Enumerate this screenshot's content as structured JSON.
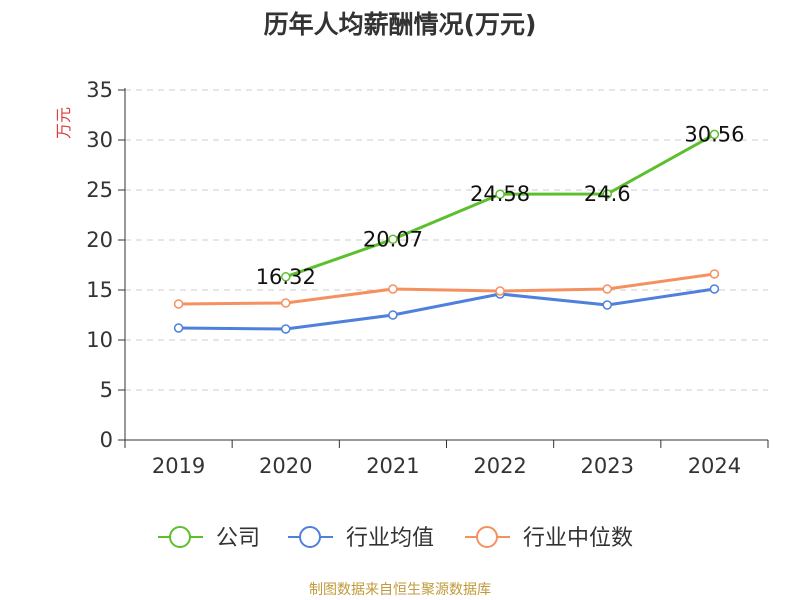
{
  "title": "历年人均薪酬情况(万元)",
  "footer": "制图数据来自恒生聚源数据库",
  "chart_data": {
    "type": "line",
    "title": "历年人均薪酬情况(万元)",
    "ylabel": "万元",
    "xlabel": "",
    "categories": [
      "2019",
      "2020",
      "2021",
      "2022",
      "2023",
      "2024"
    ],
    "ylim": [
      0,
      35
    ],
    "yticks": [
      0,
      5,
      10,
      15,
      20,
      25,
      30,
      35
    ],
    "grid": true,
    "legend_position": "bottom",
    "series": [
      {
        "name": "公司",
        "color": "#5cbf2c",
        "values": [
          null,
          16.32,
          20.07,
          24.58,
          24.6,
          30.56
        ],
        "labels": [
          "",
          "16.32",
          "20.07",
          "24.58",
          "24.6",
          "30.56"
        ]
      },
      {
        "name": "行业均值",
        "color": "#4f80dc",
        "values": [
          11.2,
          11.1,
          12.5,
          14.6,
          13.5,
          15.1
        ]
      },
      {
        "name": "行业中位数",
        "color": "#f59160",
        "values": [
          13.6,
          13.7,
          15.1,
          14.9,
          15.1,
          16.6
        ]
      }
    ]
  }
}
